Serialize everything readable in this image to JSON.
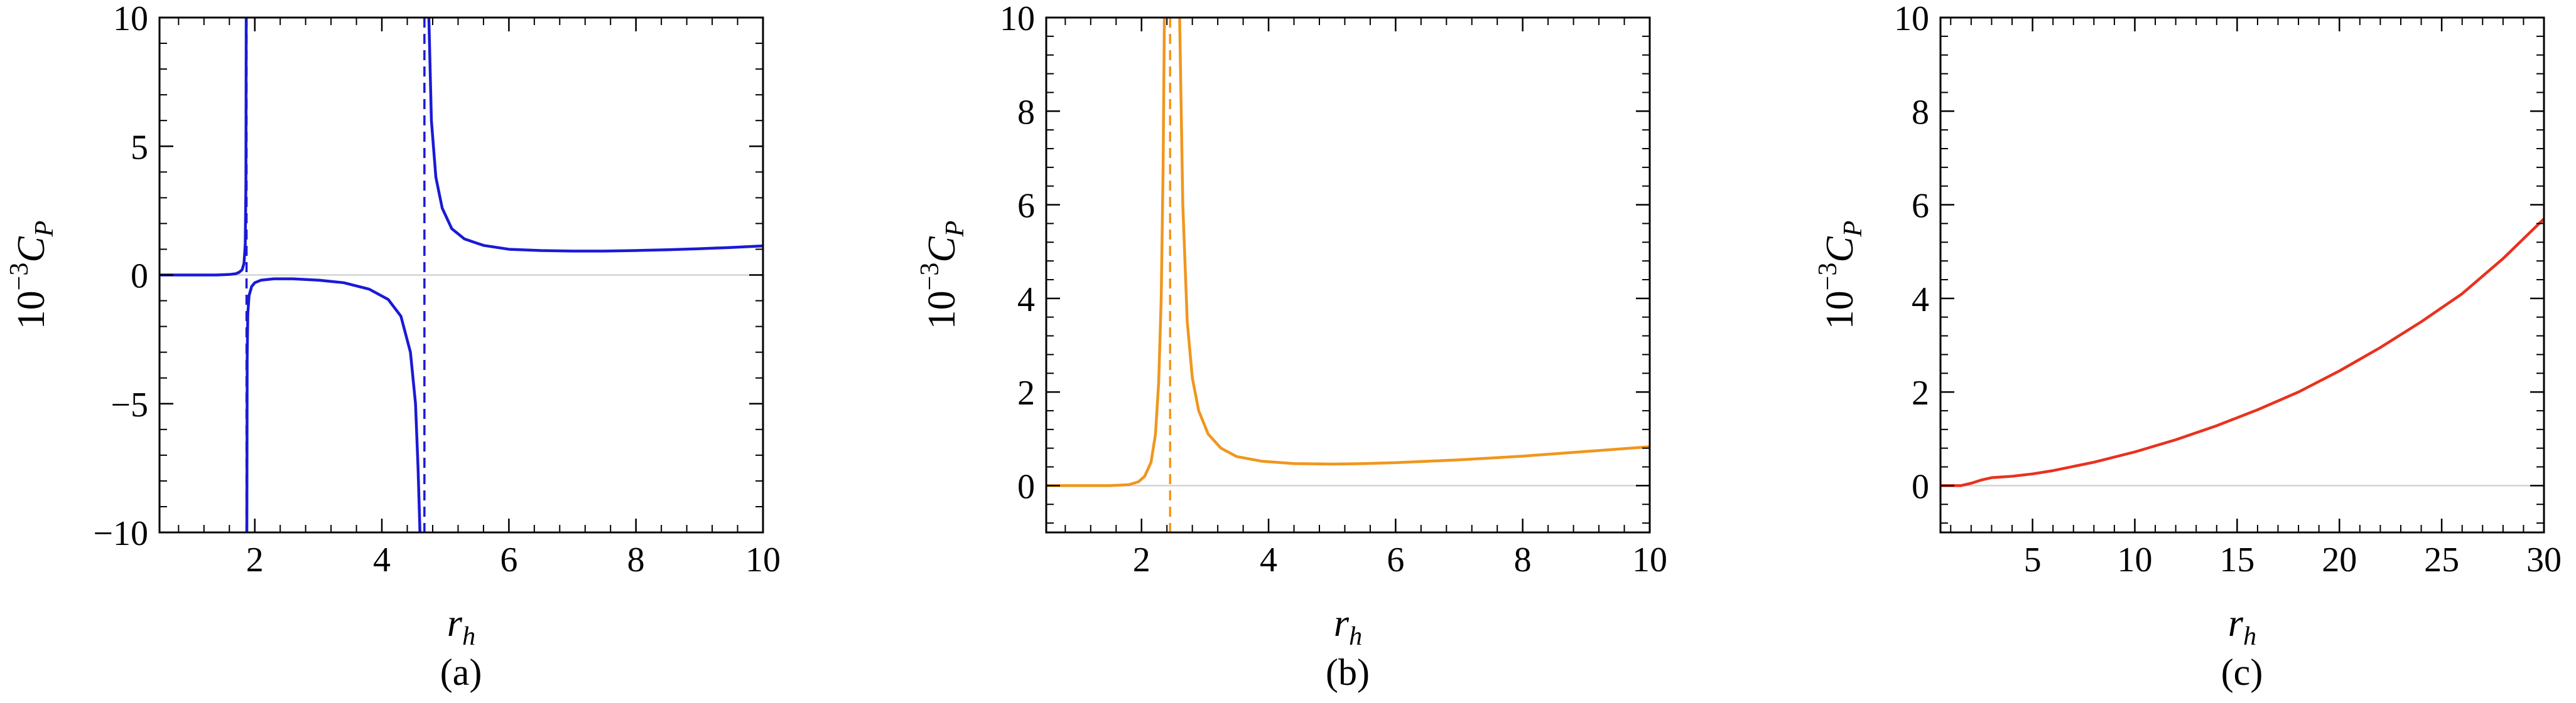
{
  "chart_data": [
    {
      "type": "line",
      "caption": "(a)",
      "xlabel": {
        "main": "r",
        "sub": "h"
      },
      "ylabel": {
        "prefix": "10",
        "exp": "−3",
        "main": "C",
        "sub": "P"
      },
      "xlim": [
        0.5,
        10
      ],
      "ylim": [
        -10,
        10
      ],
      "xticks": [
        2,
        4,
        6,
        8,
        10
      ],
      "yticks": [
        -10,
        -5,
        0,
        5,
        10
      ],
      "yticklabels": [
        "−10",
        "−5",
        "0",
        "5",
        "10"
      ],
      "color": "#1a1ad6",
      "asymptotes": [
        1.87,
        4.67
      ],
      "series": [
        {
          "x": [
            0.5,
            1.0,
            1.4,
            1.6,
            1.7,
            1.75,
            1.8,
            1.83,
            1.85,
            1.86,
            1.865
          ],
          "y": [
            0,
            0,
            0,
            0.02,
            0.05,
            0.1,
            0.2,
            0.45,
            1.2,
            3.5,
            10
          ]
        },
        {
          "x": [
            1.875,
            1.88,
            1.89,
            1.91,
            1.95,
            2.0,
            2.1,
            2.3,
            2.6,
            3.0,
            3.4,
            3.8,
            4.1,
            4.3,
            4.45,
            4.53,
            4.57,
            4.6
          ],
          "y": [
            -10,
            -3.2,
            -1.5,
            -0.8,
            -0.45,
            -0.3,
            -0.2,
            -0.15,
            -0.15,
            -0.2,
            -0.3,
            -0.55,
            -0.95,
            -1.6,
            -3.0,
            -5.0,
            -7.5,
            -10
          ]
        },
        {
          "x": [
            4.74,
            4.78,
            4.85,
            4.95,
            5.1,
            5.3,
            5.6,
            6.0,
            6.5,
            7.0,
            7.5,
            8.0,
            8.5,
            9.0,
            9.5,
            10.0
          ],
          "y": [
            10,
            6.0,
            3.8,
            2.6,
            1.8,
            1.4,
            1.15,
            1.0,
            0.95,
            0.93,
            0.93,
            0.95,
            0.98,
            1.02,
            1.07,
            1.13
          ]
        }
      ]
    },
    {
      "type": "line",
      "caption": "(b)",
      "xlabel": {
        "main": "r",
        "sub": "h"
      },
      "ylabel": {
        "prefix": "10",
        "exp": "−3",
        "main": "C",
        "sub": "P"
      },
      "xlim": [
        0.5,
        10
      ],
      "ylim": [
        -1,
        10
      ],
      "xticks": [
        2,
        4,
        6,
        8,
        10
      ],
      "yticks": [
        0,
        2,
        4,
        6,
        8,
        10
      ],
      "yticklabels": [
        "0",
        "2",
        "4",
        "6",
        "8",
        "10"
      ],
      "color": "#f0961e",
      "asymptotes": [
        2.45
      ],
      "series": [
        {
          "x": [
            0.5,
            1.0,
            1.5,
            1.8,
            1.95,
            2.05,
            2.15,
            2.22,
            2.27,
            2.31,
            2.34,
            2.36
          ],
          "y": [
            0,
            0,
            0,
            0.02,
            0.08,
            0.2,
            0.5,
            1.1,
            2.2,
            4.0,
            6.8,
            10
          ]
        },
        {
          "x": [
            2.6,
            2.65,
            2.72,
            2.8,
            2.9,
            3.05,
            3.25,
            3.5,
            3.9,
            4.4,
            5.0,
            5.5,
            6.0,
            6.5,
            7.0,
            7.5,
            8.0,
            8.5,
            9.0,
            9.5,
            10.0
          ],
          "y": [
            10,
            6.0,
            3.5,
            2.3,
            1.6,
            1.1,
            0.8,
            0.62,
            0.52,
            0.47,
            0.46,
            0.47,
            0.49,
            0.52,
            0.55,
            0.59,
            0.63,
            0.68,
            0.73,
            0.78,
            0.83
          ]
        }
      ]
    },
    {
      "type": "line",
      "caption": "(c)",
      "xlabel": {
        "main": "r",
        "sub": "h"
      },
      "ylabel": {
        "prefix": "10",
        "exp": "−3",
        "main": "C",
        "sub": "P"
      },
      "xlim": [
        0.5,
        30
      ],
      "ylim": [
        -1,
        10
      ],
      "xticks": [
        5,
        10,
        15,
        20,
        25,
        30
      ],
      "yticks": [
        0,
        2,
        4,
        6,
        8,
        10
      ],
      "yticklabels": [
        "0",
        "2",
        "4",
        "6",
        "8",
        "10"
      ],
      "color": "#e8321e",
      "asymptotes": [],
      "series": [
        {
          "x": [
            0.5,
            1.0,
            1.5,
            2.0,
            2.5,
            3.0,
            4.0,
            5.0,
            6.0,
            8.0,
            10.0,
            12.0,
            14.0,
            16.0,
            18.0,
            20.0,
            22.0,
            24.0,
            26.0,
            28.0,
            30.0
          ],
          "y": [
            0,
            0,
            0,
            0.05,
            0.12,
            0.17,
            0.2,
            0.25,
            0.32,
            0.5,
            0.72,
            0.98,
            1.28,
            1.62,
            2.0,
            2.45,
            2.95,
            3.5,
            4.1,
            4.85,
            5.7
          ]
        }
      ]
    }
  ]
}
